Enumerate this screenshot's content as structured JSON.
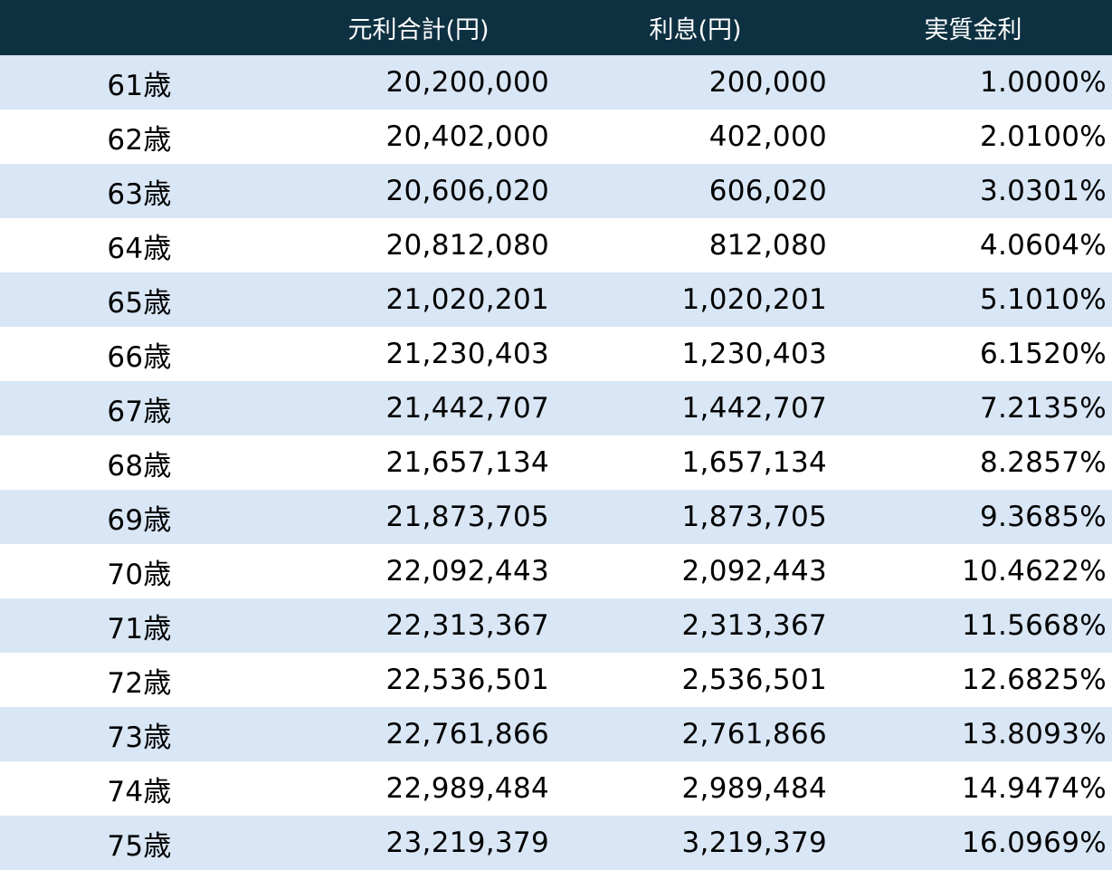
{
  "headers": [
    "",
    "元利合計(円)",
    "利息(円)",
    "実質金利"
  ],
  "rows": [
    {
      "age": "61歳",
      "total": "20,200,000",
      "interest": "200,000",
      "rate": "1.0000%"
    },
    {
      "age": "62歳",
      "total": "20,402,000",
      "interest": "402,000",
      "rate": "2.0100%"
    },
    {
      "age": "63歳",
      "total": "20,606,020",
      "interest": "606,020",
      "rate": "3.0301%"
    },
    {
      "age": "64歳",
      "total": "20,812,080",
      "interest": "812,080",
      "rate": "4.0604%"
    },
    {
      "age": "65歳",
      "total": "21,020,201",
      "interest": "1,020,201",
      "rate": "5.1010%"
    },
    {
      "age": "66歳",
      "total": "21,230,403",
      "interest": "1,230,403",
      "rate": "6.1520%"
    },
    {
      "age": "67歳",
      "total": "21,442,707",
      "interest": "1,442,707",
      "rate": "7.2135%"
    },
    {
      "age": "68歳",
      "total": "21,657,134",
      "interest": "1,657,134",
      "rate": "8.2857%"
    },
    {
      "age": "69歳",
      "total": "21,873,705",
      "interest": "1,873,705",
      "rate": "9.3685%"
    },
    {
      "age": "70歳",
      "total": "22,092,443",
      "interest": "2,092,443",
      "rate": "10.4622%"
    },
    {
      "age": "71歳",
      "total": "22,313,367",
      "interest": "2,313,367",
      "rate": "11.5668%"
    },
    {
      "age": "72歳",
      "total": "22,536,501",
      "interest": "2,536,501",
      "rate": "12.6825%"
    },
    {
      "age": "73歳",
      "total": "22,761,866",
      "interest": "2,761,866",
      "rate": "13.8093%"
    },
    {
      "age": "74歳",
      "total": "22,989,484",
      "interest": "2,989,484",
      "rate": "14.9474%"
    },
    {
      "age": "75歳",
      "total": "23,219,379",
      "interest": "3,219,379",
      "rate": "16.0969%"
    }
  ],
  "colors": {
    "header_bg": "#0e3142",
    "header_text": "#ffffff",
    "stripe": "#d9e6f5",
    "row_bg": "#ffffff"
  }
}
